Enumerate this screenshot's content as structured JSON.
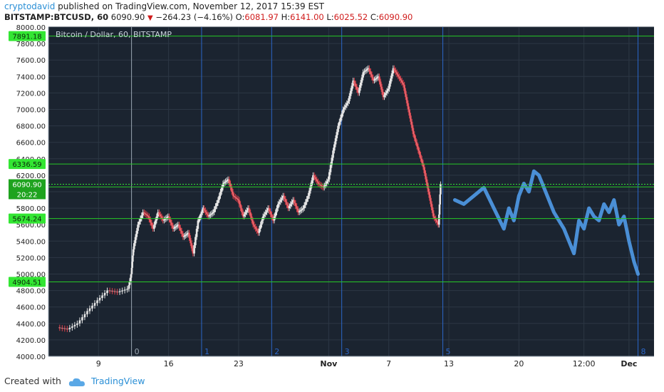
{
  "header": {
    "author": "cryptodavid",
    "published": "published on TradingView.com, November 12, 2017 15:39 EST",
    "symbol": "BITSTAMP:BTCUSD, 60",
    "last": "6090.90",
    "change": "−264.23 (−4.16%)",
    "o_label": "O:",
    "o_value": "6081.97",
    "h_label": "H:",
    "h_value": "6141.00",
    "l_label": "L:",
    "l_value": "6025.52",
    "c_label": "C:",
    "c_value": "6090.90"
  },
  "footer": {
    "created_with": "Created with",
    "brand": "TradingView"
  },
  "colors": {
    "background": "#1b2430",
    "grid": "#2c3744",
    "up": "#e6e6e6",
    "down": "#e0414b",
    "projection": "#4a8fd6",
    "level": "#26c826",
    "cycle": "#2b66c8",
    "axis_text": "#222222"
  },
  "chart_data": {
    "type": "line",
    "title": "Bitcoin / Dollar, 60, BITSTAMP",
    "ylim": [
      4000,
      8000
    ],
    "y_ticks": [
      4000,
      4200,
      4400,
      4600,
      4800,
      5000,
      5200,
      5400,
      5600,
      5800,
      6000,
      6200,
      6400,
      6600,
      6800,
      7000,
      7200,
      7400,
      7600,
      7800,
      8000
    ],
    "x_ticks": [
      {
        "label": "9",
        "day": 9
      },
      {
        "label": "16",
        "day": 16
      },
      {
        "label": "23",
        "day": 23
      },
      {
        "label": "Nov",
        "day": 32,
        "bold": true
      },
      {
        "label": "7",
        "day": 38
      },
      {
        "label": "13",
        "day": 44
      },
      {
        "label": "20",
        "day": 51
      },
      {
        "label": "12:00",
        "day": 57.5
      },
      {
        "label": "Dec",
        "day": 62,
        "bold": true
      }
    ],
    "horizontal_levels": [
      {
        "value": 7891.18,
        "label": "7891.18"
      },
      {
        "value": 6336.59,
        "label": "6336.59"
      },
      {
        "value": 6058.21,
        "label": "6058.21"
      },
      {
        "value": 5674.24,
        "label": "5674.24"
      },
      {
        "value": 4904.51,
        "label": "4904.51"
      }
    ],
    "last_price": {
      "value": 6090.9,
      "label": "6090.90",
      "countdown": "20:22"
    },
    "cycle_lines": [
      {
        "label": "0",
        "day": 12.3
      },
      {
        "label": "1",
        "day": 19.3
      },
      {
        "label": "2",
        "day": 26.3
      },
      {
        "label": "3",
        "day": 33.3
      },
      {
        "label": "5",
        "day": 43.4
      },
      {
        "label": "8",
        "day": 62.9
      }
    ],
    "price_series": {
      "name": "BTCUSD",
      "x_day": [
        5.0,
        6.0,
        7.0,
        8.0,
        9.0,
        10.0,
        11.0,
        12.0,
        12.3,
        12.5,
        13.0,
        13.5,
        14.0,
        14.5,
        15.0,
        15.5,
        16.0,
        16.5,
        17.0,
        17.5,
        18.0,
        18.5,
        19.0,
        19.2,
        19.5,
        20.0,
        20.5,
        21.0,
        21.5,
        22.0,
        22.5,
        23.0,
        23.5,
        24.0,
        24.5,
        25.0,
        25.5,
        26.0,
        26.5,
        27.0,
        27.5,
        28.0,
        28.5,
        29.0,
        29.5,
        30.0,
        30.5,
        31.0,
        31.5,
        32.0,
        32.5,
        33.0,
        33.5,
        34.0,
        34.5,
        35.0,
        35.5,
        36.0,
        36.5,
        37.0,
        37.5,
        38.0,
        38.5,
        39.0,
        39.5,
        40.0,
        40.5,
        41.0,
        41.5,
        42.0,
        42.5,
        43.0,
        43.2
      ],
      "close": [
        4350,
        4330,
        4400,
        4550,
        4680,
        4800,
        4780,
        4820,
        5000,
        5300,
        5600,
        5750,
        5700,
        5550,
        5750,
        5650,
        5700,
        5550,
        5600,
        5450,
        5500,
        5250,
        5650,
        5700,
        5800,
        5700,
        5750,
        5900,
        6100,
        6150,
        5950,
        5900,
        5700,
        5800,
        5600,
        5500,
        5700,
        5800,
        5650,
        5850,
        5950,
        5800,
        5900,
        5750,
        5800,
        5950,
        6200,
        6100,
        6050,
        6150,
        6500,
        6800,
        7000,
        7100,
        7350,
        7200,
        7450,
        7500,
        7350,
        7400,
        7150,
        7250,
        7500,
        7400,
        7300,
        7000,
        6700,
        6500,
        6300,
        6000,
        5700,
        5600,
        6090
      ]
    },
    "projection_series": {
      "x_day": [
        44.6,
        45.5,
        46.5,
        47.5,
        48.5,
        49.5,
        50.0,
        50.5,
        51.0,
        51.5,
        52.0,
        52.5,
        53.0,
        53.5,
        54.0,
        54.5,
        55.0,
        55.5,
        56.0,
        56.5,
        57.0,
        57.5,
        58.0,
        58.5,
        59.0,
        59.5,
        60.0,
        60.5,
        61.0,
        61.5,
        62.0,
        62.5,
        62.9
      ],
      "value": [
        5900,
        5850,
        5950,
        6050,
        5800,
        5550,
        5800,
        5650,
        5950,
        6100,
        6000,
        6250,
        6200,
        6050,
        5900,
        5750,
        5650,
        5550,
        5400,
        5250,
        5650,
        5550,
        5800,
        5700,
        5650,
        5850,
        5750,
        5900,
        5600,
        5700,
        5400,
        5150,
        5000
      ]
    }
  }
}
